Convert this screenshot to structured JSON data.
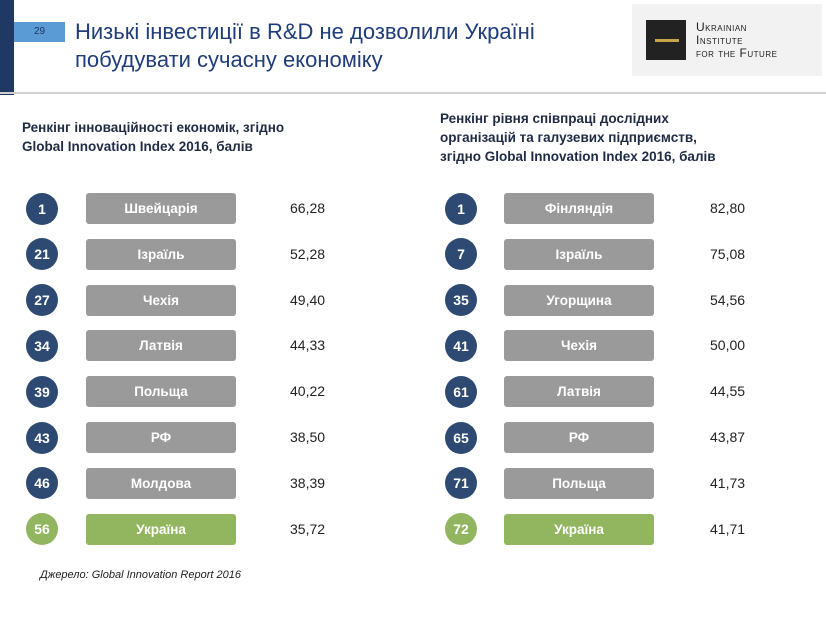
{
  "header": {
    "page_number": "29",
    "title_lines": [
      "Низькі інвестиції в R&D не дозволили Україні",
      "побудувати сучасну економіку"
    ]
  },
  "logo": {
    "lines": [
      "Ukrainian",
      "Institute",
      "for the Future"
    ]
  },
  "panels": [
    {
      "title_lines": [
        "Ренкінг інноваційності економік, згідно",
        "Global Innovation Index 2016, балів"
      ],
      "rows": [
        [
          "1",
          "Швейцарія",
          "66,28"
        ],
        [
          "21",
          "Ізраїль",
          "52,28"
        ],
        [
          "27",
          "Чехія",
          "49,40"
        ],
        [
          "34",
          "Латвія",
          "44,33"
        ],
        [
          "39",
          "Польща",
          "40,22"
        ],
        [
          "43",
          "РФ",
          "38,50"
        ],
        [
          "46",
          "Молдова",
          "38,39"
        ],
        [
          "56",
          "Україна",
          "35,72"
        ]
      ]
    },
    {
      "title_lines": [
        "Ренкінг рівня співпраці дослідних",
        "організацій та галузевих підприємств,",
        "згідно Global Innovation Index 2016, балів"
      ],
      "rows": [
        [
          "1",
          "Фінляндія",
          "82,80"
        ],
        [
          "7",
          "Ізраїль",
          "75,08"
        ],
        [
          "35",
          "Угорщина",
          "54,56"
        ],
        [
          "41",
          "Чехія",
          "50,00"
        ],
        [
          "61",
          "Латвія",
          "44,55"
        ],
        [
          "65",
          "РФ",
          "43,87"
        ],
        [
          "71",
          "Польща",
          "41,73"
        ],
        [
          "72",
          "Україна",
          "41,71"
        ]
      ]
    }
  ],
  "source": "Джерело: Global Innovation Report 2016"
}
